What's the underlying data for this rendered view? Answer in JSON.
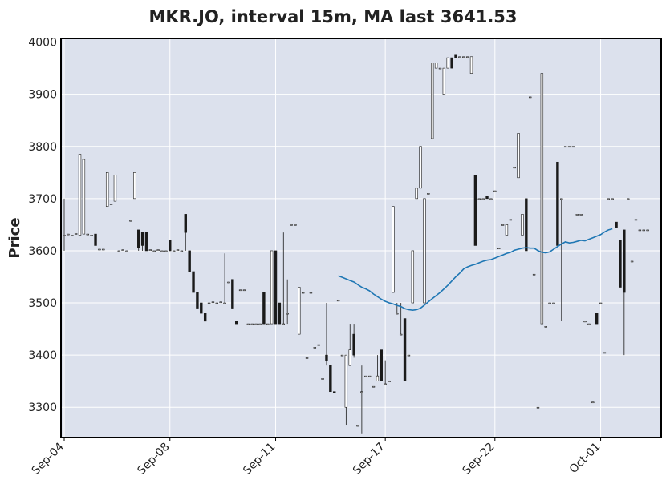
{
  "chart_data": {
    "type": "candlestick",
    "title": "MKR.JO, interval 15m, MA last 3641.53",
    "ylabel": "Price",
    "xlabel": "",
    "ylim": [
      3242,
      4007
    ],
    "yticks": [
      3300,
      3400,
      3500,
      3600,
      3700,
      3800,
      3900,
      4000
    ],
    "xtick_labels": [
      "Sep-04",
      "Sep-08",
      "Sep-11",
      "Sep-17",
      "Sep-22",
      "Oct-01"
    ],
    "xtick_index": [
      0,
      27,
      54,
      82,
      110,
      137
    ],
    "n_bars": 150,
    "grid": true,
    "colors": {
      "background": "#dce1ed",
      "grid": "#ffffff",
      "candle": "#1a1a1a",
      "ma": "#1f77b4"
    },
    "candles": [
      [
        3630,
        3700,
        3600,
        3630
      ],
      [
        3632,
        3632,
        3632,
        3632
      ],
      [
        3630,
        3630,
        3630,
        3630
      ],
      [
        3633,
        3633,
        3633,
        3633
      ],
      [
        3630,
        3785,
        3630,
        3785
      ],
      [
        3632,
        3775,
        3632,
        3775
      ],
      [
        3632,
        3632,
        3632,
        3632
      ],
      [
        3630,
        3630,
        3630,
        3630
      ],
      [
        3632,
        3632,
        3610,
        3610
      ],
      [
        3603,
        3603,
        3603,
        3603
      ],
      [
        3603,
        3603,
        3603,
        3603
      ],
      [
        3685,
        3750,
        3685,
        3750
      ],
      [
        3690,
        3690,
        3690,
        3690
      ],
      [
        3695,
        3745,
        3695,
        3745
      ],
      [
        3600,
        3600,
        3600,
        3600
      ],
      [
        3602,
        3602,
        3602,
        3602
      ],
      [
        3600,
        3600,
        3600,
        3600
      ],
      [
        3658,
        3658,
        3658,
        3658
      ],
      [
        3700,
        3750,
        3700,
        3750
      ],
      [
        3640,
        3640,
        3600,
        3605
      ],
      [
        3635,
        3635,
        3600,
        3610
      ],
      [
        3635,
        3635,
        3600,
        3600
      ],
      [
        3602,
        3602,
        3602,
        3602
      ],
      [
        3600,
        3600,
        3600,
        3600
      ],
      [
        3602,
        3602,
        3602,
        3602
      ],
      [
        3600,
        3600,
        3600,
        3600
      ],
      [
        3600,
        3600,
        3600,
        3600
      ],
      [
        3620,
        3620,
        3600,
        3600
      ],
      [
        3600,
        3600,
        3600,
        3600
      ],
      [
        3602,
        3602,
        3602,
        3602
      ],
      [
        3600,
        3600,
        3600,
        3600
      ],
      [
        3670,
        3670,
        3600,
        3635
      ],
      [
        3600,
        3600,
        3560,
        3560
      ],
      [
        3560,
        3560,
        3520,
        3520
      ],
      [
        3520,
        3520,
        3490,
        3490
      ],
      [
        3500,
        3500,
        3480,
        3480
      ],
      [
        3480,
        3480,
        3465,
        3465
      ],
      [
        3500,
        3500,
        3500,
        3500
      ],
      [
        3502,
        3502,
        3502,
        3502
      ],
      [
        3500,
        3500,
        3500,
        3500
      ],
      [
        3502,
        3502,
        3502,
        3502
      ],
      [
        3500,
        3595,
        3500,
        3500
      ],
      [
        3540,
        3540,
        3540,
        3540
      ],
      [
        3545,
        3545,
        3490,
        3490
      ],
      [
        3465,
        3465,
        3460,
        3460
      ],
      [
        3525,
        3525,
        3525,
        3525
      ],
      [
        3525,
        3525,
        3525,
        3525
      ],
      [
        3460,
        3460,
        3460,
        3460
      ],
      [
        3460,
        3460,
        3460,
        3460
      ],
      [
        3460,
        3460,
        3460,
        3460
      ],
      [
        3460,
        3460,
        3460,
        3460
      ],
      [
        3520,
        3520,
        3460,
        3460
      ],
      [
        3460,
        3460,
        3460,
        3460
      ],
      [
        3460,
        3600,
        3460,
        3600
      ],
      [
        3600,
        3600,
        3460,
        3460
      ],
      [
        3500,
        3500,
        3460,
        3460
      ],
      [
        3460,
        3635,
        3460,
        3460
      ],
      [
        3480,
        3545,
        3460,
        3480
      ],
      [
        3650,
        3650,
        3650,
        3650
      ],
      [
        3650,
        3650,
        3650,
        3650
      ],
      [
        3440,
        3530,
        3440,
        3530
      ],
      [
        3520,
        3520,
        3520,
        3520
      ],
      [
        3395,
        3395,
        3395,
        3395
      ],
      [
        3520,
        3520,
        3520,
        3520
      ],
      [
        3415,
        3415,
        3415,
        3415
      ],
      [
        3420,
        3420,
        3420,
        3420
      ],
      [
        3355,
        3355,
        3355,
        3355
      ],
      [
        3400,
        3500,
        3380,
        3390
      ],
      [
        3380,
        3380,
        3330,
        3330
      ],
      [
        3330,
        3330,
        3328,
        3328
      ],
      [
        3505,
        3505,
        3505,
        3505
      ],
      [
        3400,
        3400,
        3400,
        3400
      ],
      [
        3300,
        3400,
        3265,
        3400
      ],
      [
        3380,
        3460,
        3380,
        3410
      ],
      [
        3440,
        3460,
        3395,
        3400
      ],
      [
        3265,
        3265,
        3265,
        3265
      ],
      [
        3330,
        3380,
        3250,
        3330
      ],
      [
        3360,
        3360,
        3360,
        3360
      ],
      [
        3360,
        3360,
        3360,
        3360
      ],
      [
        3340,
        3340,
        3340,
        3340
      ],
      [
        3350,
        3400,
        3350,
        3360
      ],
      [
        3410,
        3410,
        3350,
        3350
      ],
      [
        3345,
        3390,
        3345,
        3345
      ],
      [
        3350,
        3350,
        3350,
        3350
      ],
      [
        3520,
        3685,
        3520,
        3685
      ],
      [
        3480,
        3500,
        3480,
        3480
      ],
      [
        3440,
        3500,
        3440,
        3440
      ],
      [
        3470,
        3470,
        3350,
        3350
      ],
      [
        3400,
        3400,
        3400,
        3400
      ],
      [
        3500,
        3600,
        3500,
        3600
      ],
      [
        3700,
        3720,
        3700,
        3720
      ],
      [
        3720,
        3800,
        3720,
        3800
      ],
      [
        3500,
        3700,
        3500,
        3700
      ],
      [
        3710,
        3710,
        3710,
        3710
      ],
      [
        3815,
        3960,
        3815,
        3960
      ],
      [
        3950,
        3960,
        3950,
        3960
      ],
      [
        3950,
        3950,
        3950,
        3950
      ],
      [
        3900,
        3950,
        3900,
        3950
      ],
      [
        3950,
        3970,
        3950,
        3970
      ],
      [
        3970,
        3970,
        3950,
        3950
      ],
      [
        3975,
        3975,
        3970,
        3970
      ],
      [
        3972,
        3972,
        3972,
        3972
      ],
      [
        3972,
        3972,
        3972,
        3972
      ],
      [
        3972,
        3972,
        3972,
        3972
      ],
      [
        3940,
        3972,
        3940,
        3972
      ],
      [
        3745,
        3745,
        3610,
        3610
      ],
      [
        3700,
        3700,
        3700,
        3700
      ],
      [
        3700,
        3700,
        3700,
        3700
      ],
      [
        3705,
        3705,
        3700,
        3700
      ],
      [
        3700,
        3700,
        3700,
        3700
      ],
      [
        3715,
        3715,
        3715,
        3715
      ],
      [
        3605,
        3605,
        3605,
        3605
      ],
      [
        3650,
        3650,
        3650,
        3650
      ],
      [
        3630,
        3650,
        3630,
        3650
      ],
      [
        3660,
        3660,
        3660,
        3660
      ],
      [
        3760,
        3760,
        3760,
        3760
      ],
      [
        3740,
        3825,
        3740,
        3825
      ],
      [
        3630,
        3670,
        3630,
        3670
      ],
      [
        3700,
        3700,
        3600,
        3600
      ],
      [
        3895,
        3895,
        3895,
        3895
      ],
      [
        3555,
        3555,
        3555,
        3555
      ],
      [
        3300,
        3300,
        3300,
        3300
      ],
      [
        3460,
        3940,
        3460,
        3940
      ],
      [
        3455,
        3455,
        3455,
        3455
      ],
      [
        3500,
        3500,
        3500,
        3500
      ],
      [
        3500,
        3500,
        3500,
        3500
      ],
      [
        3770,
        3770,
        3610,
        3610
      ],
      [
        3700,
        3700,
        3465,
        3700
      ],
      [
        3800,
        3800,
        3800,
        3800
      ],
      [
        3800,
        3800,
        3800,
        3800
      ],
      [
        3800,
        3800,
        3800,
        3800
      ],
      [
        3670,
        3670,
        3670,
        3670
      ],
      [
        3670,
        3670,
        3670,
        3670
      ],
      [
        3465,
        3465,
        3465,
        3465
      ],
      [
        3460,
        3460,
        3460,
        3460
      ],
      [
        3310,
        3310,
        3310,
        3310
      ],
      [
        3480,
        3480,
        3460,
        3460
      ],
      [
        3500,
        3500,
        3500,
        3500
      ],
      [
        3405,
        3405,
        3405,
        3405
      ],
      [
        3700,
        3700,
        3700,
        3700
      ],
      [
        3700,
        3700,
        3700,
        3700
      ],
      [
        3655,
        3655,
        3645,
        3645
      ],
      [
        3620,
        3620,
        3530,
        3530
      ],
      [
        3640,
        3640,
        3400,
        3520
      ],
      [
        3700,
        3700,
        3700,
        3700
      ],
      [
        3580,
        3580,
        3580,
        3580
      ],
      [
        3660,
        3660,
        3660,
        3660
      ],
      [
        3640,
        3640,
        3640,
        3640
      ],
      [
        3640,
        3640,
        3640,
        3640
      ],
      [
        3640,
        3640,
        3640,
        3640
      ]
    ],
    "ma": {
      "start_index": 70,
      "values": [
        3552,
        3549,
        3546,
        3543,
        3540,
        3535,
        3530,
        3527,
        3523,
        3517,
        3512,
        3507,
        3503,
        3500,
        3498,
        3495,
        3493,
        3489,
        3487,
        3486,
        3487,
        3490,
        3496,
        3502,
        3508,
        3514,
        3520,
        3527,
        3534,
        3542,
        3550,
        3557,
        3565,
        3569,
        3572,
        3574,
        3577,
        3580,
        3582,
        3583,
        3586,
        3589,
        3592,
        3595,
        3597,
        3601,
        3603,
        3605,
        3606,
        3605,
        3605,
        3600,
        3597,
        3596,
        3598,
        3603,
        3608,
        3613,
        3617,
        3615,
        3616,
        3618,
        3620,
        3619,
        3622,
        3625,
        3628,
        3631,
        3636,
        3640,
        3642
      ]
    }
  }
}
